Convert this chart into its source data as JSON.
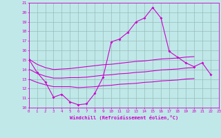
{
  "xlabel": "Windchill (Refroidissement éolien,°C)",
  "bg_color": "#c0e8e8",
  "line_color": "#cc00cc",
  "grid_color": "#99bbbb",
  "x_values": [
    0,
    1,
    2,
    3,
    4,
    5,
    6,
    7,
    8,
    9,
    10,
    11,
    12,
    13,
    14,
    15,
    16,
    17,
    18,
    19,
    20,
    21,
    22,
    23
  ],
  "y_main": [
    15.1,
    13.7,
    12.7,
    11.1,
    11.4,
    10.6,
    10.3,
    10.4,
    11.5,
    13.2,
    16.9,
    17.2,
    17.9,
    19.0,
    19.4,
    20.5,
    19.4,
    15.9,
    15.3,
    14.7,
    14.3,
    14.7,
    13.5,
    null
  ],
  "y_upper": [
    15.1,
    14.55,
    14.2,
    14.0,
    14.05,
    14.1,
    14.2,
    14.3,
    14.4,
    14.5,
    14.55,
    14.65,
    14.75,
    14.85,
    14.9,
    15.0,
    15.1,
    15.15,
    15.2,
    15.3,
    15.35,
    null,
    null,
    null
  ],
  "y_lower": [
    13.0,
    12.65,
    12.4,
    12.2,
    12.2,
    12.2,
    12.1,
    12.15,
    12.2,
    12.3,
    12.35,
    12.45,
    12.5,
    12.55,
    12.65,
    12.7,
    12.8,
    12.85,
    12.9,
    13.0,
    13.05,
    null,
    null,
    null
  ],
  "y_mid": [
    14.05,
    13.6,
    13.3,
    13.1,
    13.1,
    13.15,
    13.15,
    13.2,
    13.3,
    13.4,
    13.45,
    13.55,
    13.6,
    13.7,
    13.75,
    13.85,
    13.95,
    14.0,
    14.05,
    14.15,
    14.2,
    null,
    null,
    null
  ],
  "ylim": [
    10,
    21
  ],
  "xlim": [
    0,
    23
  ],
  "yticks": [
    10,
    11,
    12,
    13,
    14,
    15,
    16,
    17,
    18,
    19,
    20,
    21
  ],
  "xticks": [
    0,
    1,
    2,
    3,
    4,
    5,
    6,
    7,
    8,
    9,
    10,
    11,
    12,
    13,
    14,
    15,
    16,
    17,
    18,
    19,
    20,
    21,
    22,
    23
  ]
}
